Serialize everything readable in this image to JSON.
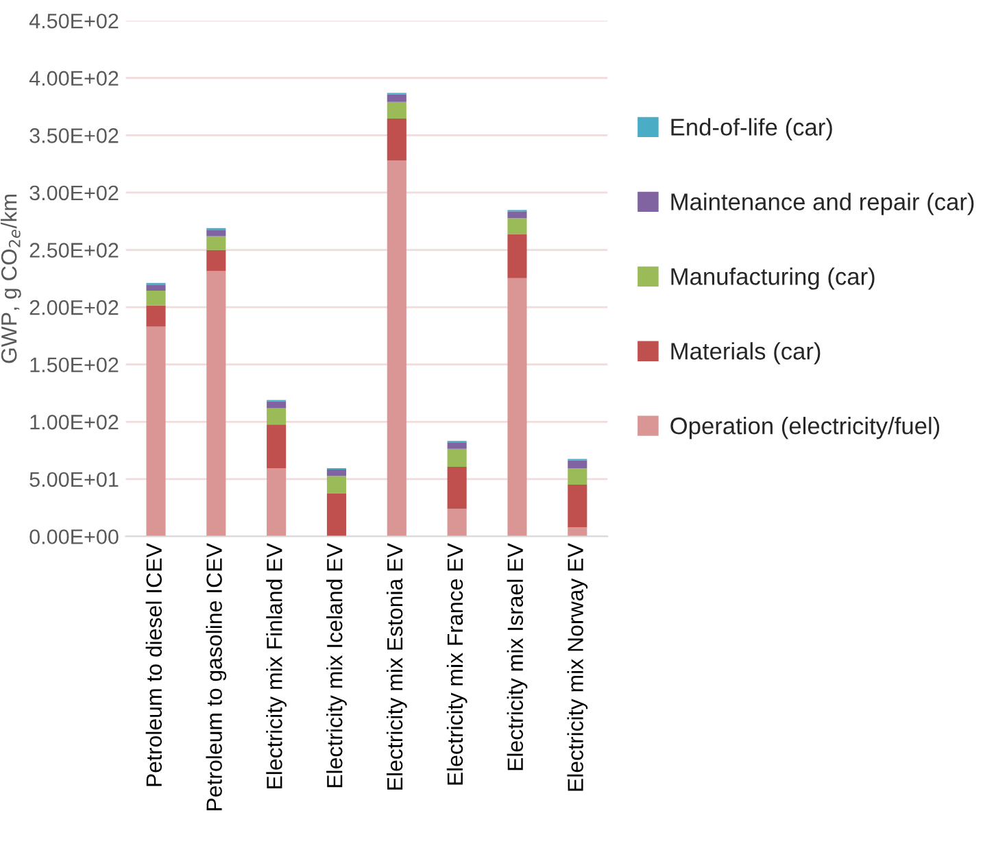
{
  "chart_data": {
    "type": "bar",
    "stacked": true,
    "ylabel": "GWP, g CO$_{2e}$/km",
    "categories": [
      "Petroleum to diesel ICEV",
      "Petroleum to gasoline ICEV",
      "Electricity mix Finland EV",
      "Electricity mix Iceland EV",
      "Electricity mix Estonia EV",
      "Electricity mix France EV",
      "Electricity mix Israel EV",
      "Electricity mix Norway EV"
    ],
    "series": [
      {
        "name": "Operation (electricity/fuel)",
        "color": "#d99694",
        "values": [
          183,
          231.7,
          59.5,
          0,
          328,
          24.1,
          225.3,
          8
        ]
      },
      {
        "name": "Materials (car)",
        "color": "#c0504d",
        "values": [
          18.5,
          18.1,
          38.2,
          37.4,
          36.5,
          36.6,
          38.2,
          37.1
        ]
      },
      {
        "name": "Manufacturing (car)",
        "color": "#9bbb59",
        "values": [
          12.9,
          12.1,
          14.1,
          15.3,
          14.5,
          15.7,
          14.1,
          14.4
        ]
      },
      {
        "name": "Maintenance and repair (car)",
        "color": "#8064a2",
        "values": [
          5.2,
          5.6,
          6.1,
          5.6,
          6.8,
          5.7,
          6,
          6.9
        ]
      },
      {
        "name": "End-of-life (car)",
        "color": "#4bacc6",
        "values": [
          1.6,
          1.5,
          1.1,
          1.2,
          1.2,
          1.2,
          1.2,
          1.2
        ]
      }
    ],
    "ylim": [
      0,
      450
    ],
    "yticks": [
      {
        "value": 0,
        "label": "0.00E+00"
      },
      {
        "value": 50,
        "label": "5.00E+01"
      },
      {
        "value": 100,
        "label": "1.00E+02"
      },
      {
        "value": 150,
        "label": "1.50E+02"
      },
      {
        "value": 200,
        "label": "2.00E+02"
      },
      {
        "value": 250,
        "label": "2.50E+02"
      },
      {
        "value": 300,
        "label": "3.00E+02"
      },
      {
        "value": 350,
        "label": "3.50E+02"
      },
      {
        "value": 400,
        "label": "4.00E+02"
      },
      {
        "value": 450,
        "label": "4.50E+02"
      }
    ],
    "grid": "y",
    "legend": "right"
  }
}
